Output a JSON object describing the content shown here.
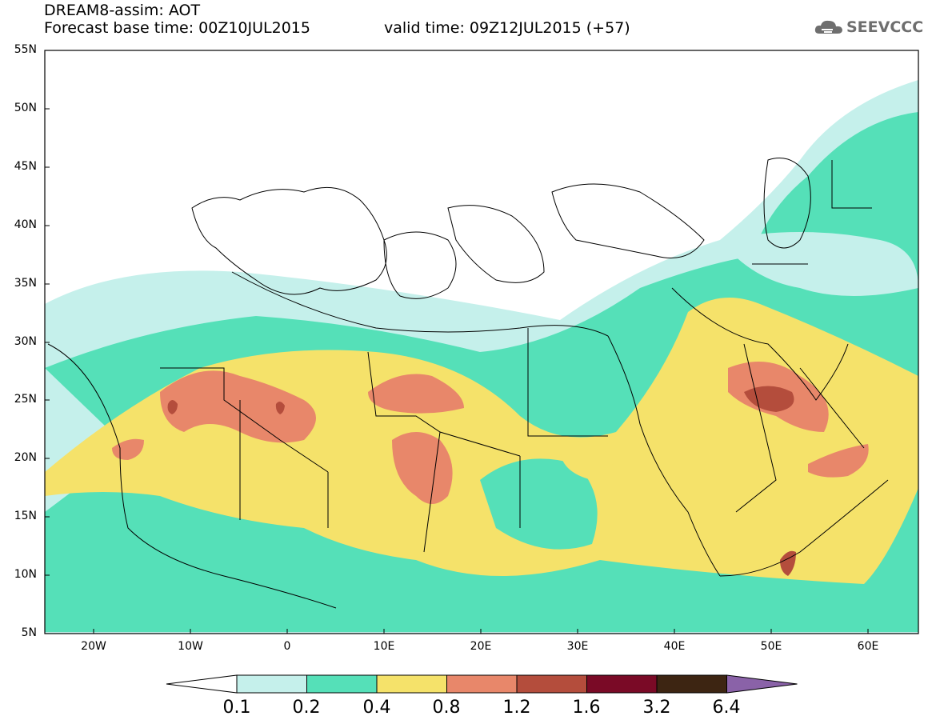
{
  "header": {
    "line1": "DREAM8-assim: AOT",
    "line2": "Forecast base time: 00Z10JUL2015",
    "valid": "valid time: 09Z12JUL2015 (+57)",
    "logo_text": "SEEVCCC"
  },
  "axes": {
    "lat_labels": [
      "55N",
      "50N",
      "45N",
      "40N",
      "35N",
      "30N",
      "25N",
      "20N",
      "15N",
      "10N",
      "5N"
    ],
    "lon_labels": [
      "20W",
      "10W",
      "0",
      "10E",
      "20E",
      "30E",
      "40E",
      "50E",
      "60E"
    ]
  },
  "colorbar": {
    "labels": [
      "0.1",
      "0.2",
      "0.4",
      "0.8",
      "1.2",
      "1.6",
      "3.2",
      "6.4"
    ],
    "colors": [
      "#ffffff",
      "#c5f0eb",
      "#55e0b8",
      "#f5e26a",
      "#e8876a",
      "#b44d3c",
      "#7a0a26",
      "#3d2512",
      "#8a62a8"
    ]
  }
}
